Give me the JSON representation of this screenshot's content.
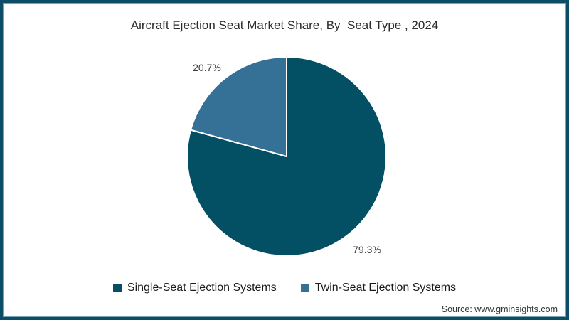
{
  "frame": {
    "border_color": "#0b4e66",
    "inner_line_color": "#7ba2b2",
    "background": "#ffffff"
  },
  "title": "Aircraft Ejection Seat Market Share, By  Seat Type , 2024",
  "chart_data": {
    "type": "pie",
    "title": "Aircraft Ejection Seat Market Share, By  Seat Type , 2024",
    "slices": [
      {
        "label": "Single-Seat Ejection Systems",
        "value": 79.3,
        "display": "79.3%",
        "color": "#035064"
      },
      {
        "label": "Twin-Seat Ejection Systems",
        "value": 20.7,
        "display": "20.7%",
        "color": "#357096"
      }
    ],
    "start_angle_deg": -90,
    "direction": "clockwise",
    "slice_border_color": "#ffffff",
    "slice_border_width": 2,
    "legend_position": "bottom",
    "data_labels_position": "outside"
  },
  "source": "Source: www.gminsights.com"
}
